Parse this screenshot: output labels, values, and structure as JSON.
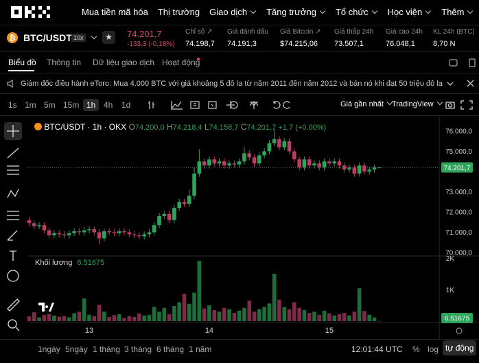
{
  "nav": {
    "logo": "OKX",
    "items": [
      "Mua tiền mã hóa",
      "Thị trường",
      "Giao dịch",
      "Tăng trưởng",
      "Tổ chức",
      "Học viện",
      "Thêm"
    ]
  },
  "ticker": {
    "pair": "BTC/USDT",
    "leverage": "10x",
    "price": "74.201,7",
    "change": "-133,3 (-0,18%)",
    "stats": [
      {
        "label": "Chỉ số",
        "value": "74.198,7"
      },
      {
        "label": "Giá đánh dấu",
        "value": "74.191,3"
      },
      {
        "label": "Giá Bitcoin",
        "value": "$74.215,06"
      },
      {
        "label": "Giá thấp 24h",
        "value": "73.507,1"
      },
      {
        "label": "Giá cao 24h",
        "value": "76.048,1"
      },
      {
        "label": "KL 24h (BTC)",
        "value": "8,70 N"
      }
    ]
  },
  "tabs": [
    "Biểu đồ",
    "Thông tin",
    "Dữ liệu giao dịch",
    "Hoạt động"
  ],
  "announcement": "Giám đốc điều hành eToro: Mua 4.000 BTC với giá khoảng 5 đô la từ năm 2011 đến năm 2012 và bán nó khi đạt 50 triệu đô la",
  "toolbar": {
    "intervals": [
      "1s",
      "1m",
      "5m",
      "15m",
      "1h",
      "4h",
      "1d"
    ],
    "price_mode": "Giá gần nhất",
    "view": "TradingView"
  },
  "chart": {
    "type": "candlestick",
    "title": "BTC/USDT · 1h · OKX",
    "legend": [
      {
        "key": "O",
        "value": "74.200,0"
      },
      {
        "key": "H",
        "value": "74.218,4"
      },
      {
        "key": "L",
        "value": "74.158,7"
      },
      {
        "key": "C",
        "value": "74.201,7"
      }
    ],
    "legend_change": "+1,7 (+0.00%)",
    "open": [
      71600,
      71450,
      71300,
      71350,
      71100,
      70850,
      70950,
      70900,
      70850,
      70950,
      71050,
      71000,
      71100,
      71150,
      71000,
      70700,
      71050,
      71000,
      70950,
      71050,
      71000,
      70900,
      70850,
      70800,
      70900,
      71000,
      71350,
      71800,
      71900,
      71600,
      72200,
      72500,
      72400,
      72800,
      73900,
      74500,
      74300,
      74600,
      74400,
      74500,
      74300,
      74400,
      74350,
      74500,
      74900,
      74700,
      74400,
      74800,
      75000,
      75400,
      75600,
      75200,
      75500,
      75000,
      74600,
      74200,
      74600,
      74300,
      74400,
      74200,
      74500,
      74400,
      74500,
      74300,
      74100,
      74200,
      73900,
      74300,
      74000,
      74100,
      74200
    ],
    "high": [
      71750,
      71600,
      71500,
      71500,
      71250,
      71100,
      71100,
      71050,
      71100,
      71200,
      71200,
      71250,
      71300,
      71300,
      71150,
      71200,
      71200,
      71150,
      71200,
      71200,
      71150,
      71050,
      71000,
      71050,
      71150,
      71500,
      71950,
      72050,
      72050,
      72350,
      72650,
      72650,
      73100,
      74200,
      75100,
      74650,
      74750,
      74750,
      74650,
      74650,
      74550,
      74550,
      74650,
      75200,
      75050,
      74850,
      74950,
      75150,
      75550,
      76100,
      75750,
      75650,
      75650,
      75150,
      74750,
      74750,
      74750,
      74550,
      74550,
      74650,
      74650,
      74650,
      74650,
      74450,
      74350,
      74350,
      74450,
      74450,
      74250,
      74350,
      74218.4
    ],
    "low": [
      71300,
      71150,
      71150,
      70950,
      70700,
      70700,
      70750,
      70700,
      70700,
      70800,
      70850,
      70850,
      70950,
      70850,
      70400,
      70550,
      70850,
      70800,
      70800,
      70850,
      70750,
      70700,
      70650,
      70650,
      70750,
      70850,
      71200,
      71650,
      71450,
      71450,
      72050,
      72250,
      72250,
      72650,
      73750,
      74150,
      74150,
      74250,
      74250,
      74150,
      74150,
      74200,
      74200,
      74350,
      74550,
      74250,
      74250,
      74650,
      74850,
      75250,
      75050,
      75050,
      74850,
      74450,
      74050,
      74050,
      74150,
      74150,
      74050,
      74050,
      74250,
      74250,
      74150,
      73950,
      73950,
      73750,
      73750,
      73850,
      73850,
      73950,
      74158.7
    ],
    "close": [
      71450,
      71300,
      71350,
      71100,
      70850,
      70950,
      70900,
      70850,
      70950,
      71050,
      71000,
      71100,
      71150,
      71000,
      70700,
      71050,
      71000,
      70950,
      71050,
      71000,
      70900,
      70850,
      70800,
      70900,
      71000,
      71350,
      71800,
      71900,
      71600,
      72200,
      72500,
      72400,
      72800,
      73900,
      74500,
      74300,
      74600,
      74400,
      74500,
      74300,
      74400,
      74350,
      74500,
      74900,
      74700,
      74400,
      74800,
      75000,
      75400,
      75600,
      75200,
      75500,
      75000,
      74600,
      74200,
      74600,
      74300,
      74400,
      74200,
      74500,
      74400,
      74500,
      74300,
      74100,
      74200,
      73900,
      74300,
      74000,
      74100,
      74200,
      74201.7
    ],
    "volume": [
      150,
      280,
      120,
      200,
      230,
      180,
      140,
      160,
      120,
      250,
      300,
      720,
      200,
      160,
      520,
      300,
      130,
      190,
      220,
      100,
      160,
      130,
      240,
      180,
      200,
      450,
      300,
      420,
      220,
      480,
      600,
      870,
      550,
      900,
      1910,
      400,
      500,
      350,
      300,
      420,
      380,
      260,
      330,
      420,
      650,
      300,
      380,
      450,
      560,
      1500,
      680,
      450,
      380,
      600,
      420,
      350,
      260,
      300,
      200,
      330,
      250,
      180,
      220,
      260,
      180,
      300,
      1040,
      320,
      200,
      120,
      6.51675
    ],
    "ylim": [
      69864,
      76508
    ],
    "yticks": [
      {
        "value": 70000,
        "label": "70.000,0"
      },
      {
        "value": 71000,
        "label": "71.000,0"
      },
      {
        "value": 72000,
        "label": "72.000,0"
      },
      {
        "value": 73000,
        "label": "73.000,0"
      },
      {
        "value": 75000,
        "label": "75.000,0"
      },
      {
        "value": 76000,
        "label": "76.000,0"
      }
    ],
    "price_tag": "74.201,7",
    "volume_title": "Khối lượng",
    "volume_value": "6.51675",
    "volume_tag": "6.51675",
    "vlim": [
      0,
      2000
    ],
    "vticks": [
      {
        "value": 1000,
        "label": "1K"
      },
      {
        "value": 2000,
        "label": "2K"
      }
    ],
    "xticks": [
      {
        "value": 12,
        "label": "13"
      },
      {
        "value": 36,
        "label": "14"
      },
      {
        "value": 60,
        "label": "15"
      }
    ],
    "up_color": "#2ea35a",
    "down_color": "#b93e63",
    "up_volume_color": "#1d6e3b",
    "down_volume_color": "#7d2b46"
  },
  "footer": {
    "ranges": [
      "1ngày",
      "5ngày",
      "1 tháng",
      "3 tháng",
      "6 tháng",
      "1 năm"
    ],
    "time": "12:01:44 UTC",
    "options": [
      "%",
      "log",
      "tự động"
    ]
  }
}
